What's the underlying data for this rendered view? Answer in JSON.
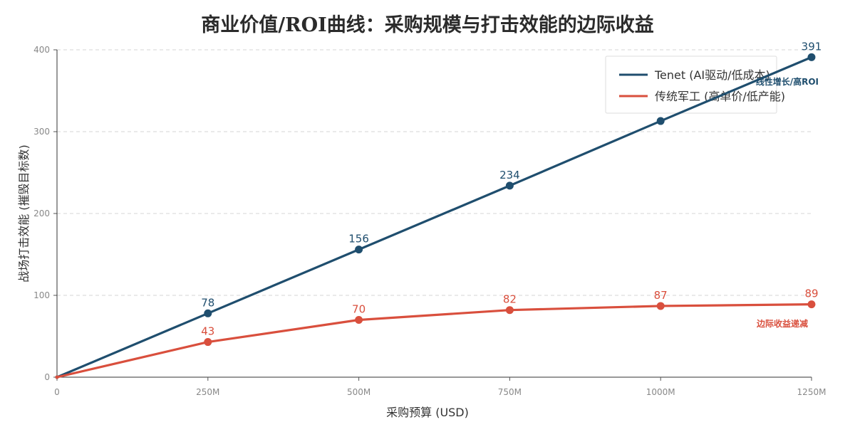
{
  "chart_data": {
    "type": "line",
    "title": "商业价值/ROI曲线：采购规模与打击效能的边际收益",
    "xlabel": "采购预算 (USD)",
    "ylabel": "战场打击效能 (摧毁目标数)",
    "x": [
      0,
      250,
      500,
      750,
      1000,
      1250
    ],
    "x_tick_labels": [
      "0",
      "250M",
      "500M",
      "750M",
      "1000M",
      "1250M"
    ],
    "xlim": [
      0,
      1250
    ],
    "ylim": [
      0,
      400
    ],
    "y_ticks": [
      0,
      100,
      200,
      300,
      400
    ],
    "grid": true,
    "legend_position": "top-right",
    "series": [
      {
        "name": "Tenet (AI驱动/低成本)",
        "color": "#1f4e6e",
        "values": [
          0,
          78,
          156,
          234,
          313,
          391
        ],
        "labels": [
          "",
          "78",
          "156",
          "234",
          "",
          "391"
        ],
        "annotation": "线性增长/高ROI"
      },
      {
        "name": "传统军工 (高单价/低产能)",
        "color": "#d94f3d",
        "values": [
          0,
          43,
          70,
          82,
          87,
          89
        ],
        "labels": [
          "",
          "43",
          "70",
          "82",
          "87",
          "89"
        ],
        "annotation": "边际收益递减"
      }
    ]
  }
}
